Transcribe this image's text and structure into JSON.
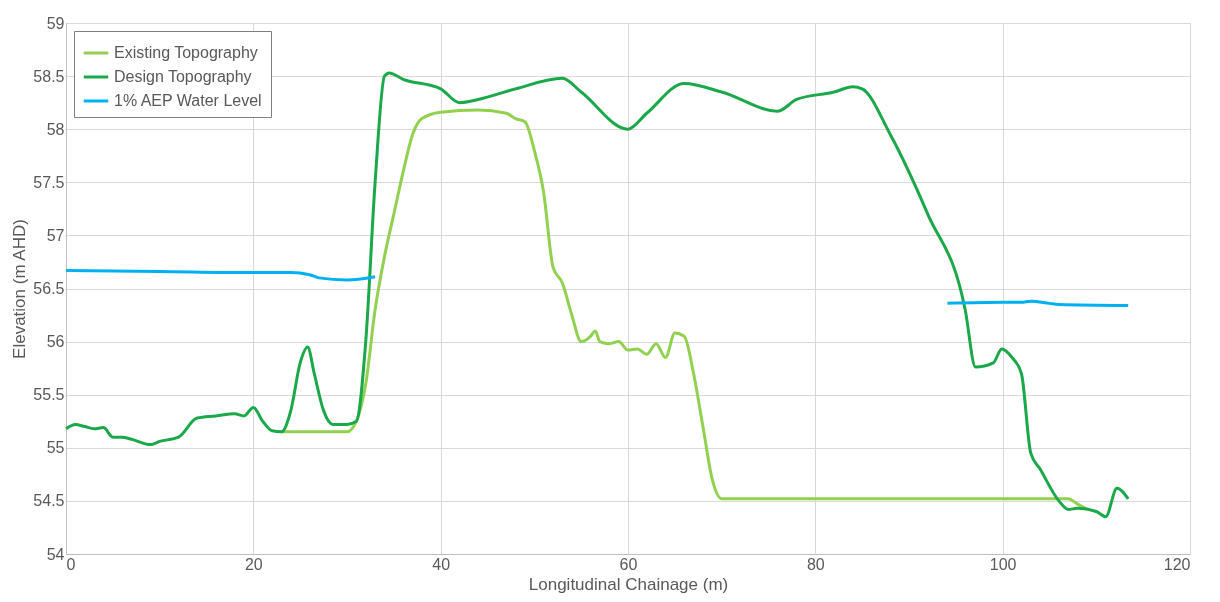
{
  "chart_data": {
    "type": "line",
    "xlabel": "Longitudinal Chainage (m)",
    "ylabel": "Elevation (m AHD)",
    "xlim": [
      0,
      120
    ],
    "xticks": [
      0,
      20,
      40,
      60,
      80,
      100,
      120
    ],
    "ylim": [
      54,
      59
    ],
    "yticks": [
      54,
      54.5,
      55,
      55.5,
      56,
      56.5,
      57,
      57.5,
      58,
      58.5,
      59
    ],
    "grid": true,
    "legend": "top left",
    "line_style": "solid",
    "marker": "none",
    "series": [
      {
        "name": "Existing Topography",
        "color": "#92d050",
        "x": [
          23,
          25,
          28,
          30,
          31,
          32,
          33,
          34,
          35,
          36,
          37,
          38,
          40,
          44,
          47,
          48,
          49,
          50,
          51,
          52,
          53,
          54,
          55,
          56,
          56.5,
          57,
          58,
          59,
          60,
          61,
          62,
          63,
          64,
          65,
          66,
          67,
          68,
          69,
          70,
          72,
          80,
          90,
          100,
          107,
          108,
          109
        ],
        "values": [
          55.15,
          55.15,
          55.15,
          55.15,
          55.25,
          55.6,
          56.3,
          56.8,
          57.2,
          57.6,
          57.95,
          58.1,
          58.16,
          58.18,
          58.15,
          58.1,
          58.07,
          57.8,
          57.4,
          56.7,
          56.55,
          56.25,
          56.0,
          56.05,
          56.1,
          56.0,
          55.98,
          56.0,
          55.92,
          55.93,
          55.88,
          55.98,
          55.85,
          56.08,
          56.05,
          55.7,
          55.2,
          54.7,
          54.52,
          54.52,
          54.52,
          54.52,
          54.52,
          54.52,
          54.47,
          54.42
        ]
      },
      {
        "name": "Design Topography",
        "color": "#1aa84a",
        "x": [
          0,
          1,
          2,
          3,
          4,
          5,
          6,
          7,
          9,
          10,
          12,
          14,
          16,
          18,
          19,
          20,
          21,
          22,
          23,
          24,
          25,
          25.8,
          26.5,
          27.5,
          28.5,
          30,
          31,
          32,
          33,
          34,
          34.5,
          36,
          40,
          42,
          44,
          48,
          53,
          55,
          60,
          62,
          66,
          70,
          76,
          78,
          82,
          84,
          85,
          88,
          92,
          96,
          97.1,
          99,
          99.9,
          101,
          102,
          103,
          104,
          106,
          107,
          108,
          110,
          111,
          112.2,
          113.4
        ],
        "values": [
          55.18,
          55.22,
          55.2,
          55.18,
          55.19,
          55.1,
          55.1,
          55.08,
          55.03,
          55.06,
          55.1,
          55.28,
          55.3,
          55.32,
          55.3,
          55.38,
          55.25,
          55.16,
          55.15,
          55.35,
          55.8,
          55.95,
          55.7,
          55.35,
          55.22,
          55.22,
          55.25,
          56.0,
          57.5,
          58.5,
          58.53,
          58.47,
          58.38,
          58.25,
          58.28,
          58.38,
          58.48,
          58.35,
          58.0,
          58.15,
          58.43,
          58.35,
          58.17,
          58.28,
          58.35,
          58.4,
          58.38,
          57.95,
          57.2,
          56.3,
          55.76,
          55.8,
          55.93,
          55.85,
          55.7,
          54.95,
          54.8,
          54.5,
          54.42,
          54.43,
          54.4,
          54.35,
          54.62,
          54.52
        ]
      },
      {
        "name": "1% AEP Water Level",
        "color": "#00b0f0",
        "x": [
          0,
          10,
          20,
          24,
          26,
          27,
          30,
          33,
          60,
          94.1,
          100,
          102,
          103,
          105,
          106,
          113.4
        ],
        "values": [
          56.67,
          56.66,
          56.65,
          56.65,
          56.63,
          56.6,
          56.58,
          56.61,
          null,
          56.36,
          56.37,
          56.37,
          56.38,
          56.36,
          56.35,
          56.34
        ]
      }
    ]
  }
}
